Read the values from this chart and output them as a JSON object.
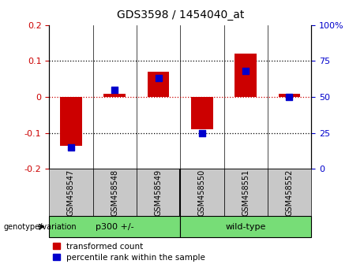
{
  "title": "GDS3598 / 1454040_at",
  "samples": [
    "GSM458547",
    "GSM458548",
    "GSM458549",
    "GSM458550",
    "GSM458551",
    "GSM458552"
  ],
  "transformed_count": [
    -0.135,
    0.008,
    0.07,
    -0.09,
    0.12,
    0.008
  ],
  "percentile_rank": [
    15,
    55,
    63,
    25,
    68,
    50
  ],
  "ylim_left": [
    -0.2,
    0.2
  ],
  "ylim_right": [
    0,
    100
  ],
  "bar_color": "#cc0000",
  "dot_color": "#0000cc",
  "bar_width": 0.5,
  "zero_line_color": "#cc0000",
  "legend_labels": [
    "transformed count",
    "percentile rank within the sample"
  ],
  "genotype_label": "genotype/variation",
  "yticks_left": [
    -0.2,
    -0.1,
    0.0,
    0.1,
    0.2
  ],
  "ytick_labels_left": [
    "-0.2",
    "-0.1",
    "0",
    "0.1",
    "0.2"
  ],
  "yticks_right": [
    0,
    25,
    50,
    75,
    100
  ],
  "ytick_labels_right": [
    "0",
    "25",
    "50",
    "75",
    "100%"
  ],
  "group1_label": "p300 +/-",
  "group2_label": "wild-type",
  "group_color": "#77dd77",
  "sample_box_color": "#c8c8c8",
  "title_fontsize": 10,
  "axis_fontsize": 8,
  "label_fontsize": 7,
  "legend_fontsize": 7.5
}
